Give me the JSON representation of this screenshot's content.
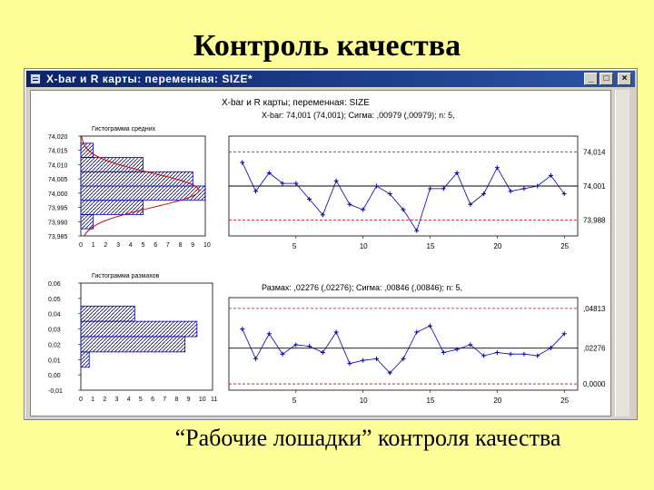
{
  "slide": {
    "title": "Контроль качества",
    "caption": "“Рабочие лошадки” контроля качества"
  },
  "window": {
    "title": "X-bar и R карты: переменная: SIZE*",
    "buttons": {
      "minimize": "_",
      "maximize": "□",
      "close": "×"
    }
  },
  "chart_header": {
    "line1": "X-bar и R карты; переменная:  SIZE",
    "line2": "X-bar: 74,001 (74,001); Сигма: ,00979 (,00979); n: 5,"
  },
  "colors": {
    "background": "#ffff99",
    "series": "#0000aa",
    "limits": "#cc0000",
    "center": "#000000",
    "titlebar": "#0a246a"
  },
  "chart_data": [
    {
      "type": "bar",
      "orientation": "horizontal",
      "title": "Гистограмма средних",
      "categories": [
        "74,015",
        "74,010",
        "74,005",
        "74,000",
        "73,995",
        "73,990"
      ],
      "values": [
        1,
        5,
        9,
        10,
        5,
        1
      ],
      "y_ticks": [
        "74,020",
        "74,015",
        "74,010",
        "74,005",
        "74,000",
        "73,995",
        "73,990",
        "73,985"
      ],
      "x_ticks": [
        "0",
        "1",
        "2",
        "3",
        "4",
        "5",
        "6",
        "7",
        "8",
        "9",
        "10"
      ],
      "xlim": [
        0,
        10
      ],
      "ylim": [
        73.985,
        74.02
      ],
      "normal_curve": true
    },
    {
      "type": "line",
      "title": "X-bar",
      "x": [
        1,
        2,
        3,
        4,
        5,
        6,
        7,
        8,
        9,
        10,
        11,
        12,
        13,
        14,
        15,
        16,
        17,
        18,
        19,
        20,
        21,
        22,
        23,
        24,
        25
      ],
      "values": [
        74.01,
        73.999,
        74.006,
        74.002,
        74.002,
        73.996,
        73.99,
        74.003,
        73.994,
        73.992,
        74.001,
        73.998,
        73.992,
        73.984,
        74.0,
        74.0,
        74.006,
        73.994,
        73.998,
        74.008,
        73.999,
        74.0,
        74.001,
        74.005,
        73.998
      ],
      "ucl": 74.014,
      "center": 74.001,
      "lcl": 73.988,
      "limit_labels": [
        "74,014",
        "74,001",
        "73,988"
      ],
      "x_ticks": [
        "5",
        "10",
        "15",
        "20",
        "25"
      ],
      "ylim": [
        73.982,
        74.02
      ],
      "grid": false
    },
    {
      "type": "bar",
      "orientation": "horizontal",
      "title": "Гистограмма размахов",
      "categories": [
        "0,04",
        "0,03",
        "0,02",
        "0,01"
      ],
      "values": [
        4.5,
        9.7,
        8.7,
        0.7
      ],
      "y_ticks": [
        "0,06",
        "0,05",
        "0,04",
        "0,03",
        "0,02",
        "0,01",
        "0,00",
        "-0,01"
      ],
      "x_ticks": [
        "0",
        "1",
        "2",
        "3",
        "4",
        "5",
        "6",
        "7",
        "8",
        "9",
        "10",
        "11"
      ],
      "xlim": [
        0,
        11
      ],
      "ylim": [
        -0.01,
        0.06
      ]
    },
    {
      "type": "line",
      "title": "Размах: ,02276 (,02276); Сигма: ,00846 (,00846); n: 5,",
      "x": [
        1,
        2,
        3,
        4,
        5,
        6,
        7,
        8,
        9,
        10,
        11,
        12,
        13,
        14,
        15,
        16,
        17,
        18,
        19,
        20,
        21,
        22,
        23,
        24,
        25
      ],
      "values": [
        0.035,
        0.016,
        0.032,
        0.019,
        0.025,
        0.024,
        0.02,
        0.033,
        0.013,
        0.015,
        0.016,
        0.007,
        0.016,
        0.033,
        0.037,
        0.02,
        0.022,
        0.025,
        0.018,
        0.02,
        0.019,
        0.019,
        0.018,
        0.023,
        0.032
      ],
      "ucl": 0.04813,
      "center": 0.02276,
      "lcl": 0.0,
      "limit_labels": [
        ",04813",
        ",02276",
        "0,0000"
      ],
      "x_ticks": [
        "5",
        "10",
        "15",
        "20",
        "25"
      ],
      "ylim": [
        -0.004,
        0.055
      ],
      "grid": false
    }
  ]
}
